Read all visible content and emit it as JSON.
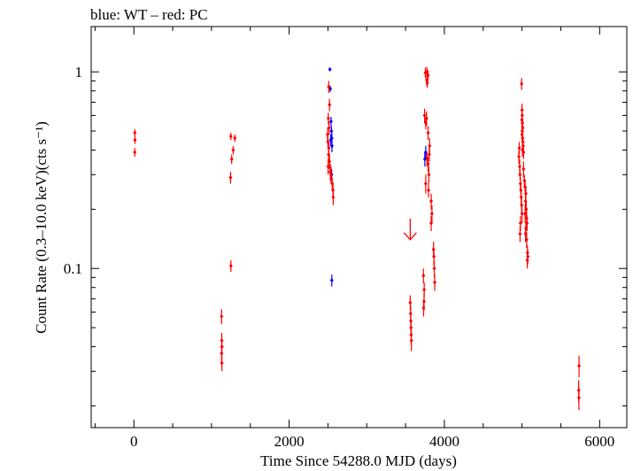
{
  "chart_data": {
    "type": "scatter",
    "title": "blue: WT – red: PC",
    "xlabel": "Time Since 54288.0 MJD (days)",
    "ylabel": "Count Rate (0.3–10.0 keV)(cts s⁻¹)",
    "xlim": [
      -550,
      6350
    ],
    "ylim": [
      0.0155,
      1.7
    ],
    "yscale": "log",
    "grid": false,
    "x_ticks": [
      {
        "value": 0,
        "label": "0"
      },
      {
        "value": 2000,
        "label": "2000"
      },
      {
        "value": 4000,
        "label": "4000"
      },
      {
        "value": 6000,
        "label": "6000"
      }
    ],
    "y_ticks": [
      {
        "value": 1,
        "label": "1"
      },
      {
        "value": 0.1,
        "label": "0.1"
      }
    ],
    "colors": {
      "WT": "#0000ff",
      "PC": "#ff0000",
      "axis": "#000000"
    },
    "series": [
      {
        "mode": "WT",
        "color": "#0000ff",
        "points": [
          [
            2525,
            1.03,
            0.02
          ],
          [
            2530,
            0.82,
            0.03
          ],
          [
            2540,
            0.56,
            0.03
          ],
          [
            2545,
            0.5,
            0.03
          ],
          [
            2550,
            0.46,
            0.03
          ],
          [
            2535,
            0.45,
            0.03
          ],
          [
            2552,
            0.42,
            0.03
          ],
          [
            2548,
            0.3,
            0.02
          ],
          [
            2550,
            0.087,
            0.006
          ],
          [
            3760,
            0.39,
            0.03
          ],
          [
            3748,
            0.36,
            0.03
          ]
        ]
      },
      {
        "mode": "PC",
        "color": "#ff0000",
        "points": [
          [
            12,
            0.49,
            0.02
          ],
          [
            14,
            0.45,
            0.02
          ],
          [
            12,
            0.39,
            0.02
          ],
          [
            1250,
            0.47,
            0.02
          ],
          [
            1300,
            0.46,
            0.02
          ],
          [
            1280,
            0.4,
            0.02
          ],
          [
            1260,
            0.36,
            0.02
          ],
          [
            1245,
            0.29,
            0.02
          ],
          [
            1250,
            0.103,
            0.007
          ],
          [
            1130,
            0.057,
            0.005
          ],
          [
            1132,
            0.043,
            0.004
          ],
          [
            1135,
            0.04,
            0.004
          ],
          [
            1130,
            0.037,
            0.004
          ],
          [
            1134,
            0.033,
            0.003
          ],
          [
            2510,
            0.84,
            0.06
          ],
          [
            2520,
            0.68,
            0.05
          ],
          [
            2505,
            0.58,
            0.04
          ],
          [
            2515,
            0.52,
            0.04
          ],
          [
            2495,
            0.48,
            0.04
          ],
          [
            2500,
            0.44,
            0.03
          ],
          [
            2512,
            0.41,
            0.03
          ],
          [
            2508,
            0.38,
            0.03
          ],
          [
            2520,
            0.35,
            0.03
          ],
          [
            2502,
            0.33,
            0.03
          ],
          [
            2530,
            0.31,
            0.03
          ],
          [
            2540,
            0.3,
            0.03
          ],
          [
            2555,
            0.27,
            0.02
          ],
          [
            2565,
            0.25,
            0.02
          ],
          [
            2568,
            0.23,
            0.02
          ],
          [
            3560,
            0.067,
            0.006
          ],
          [
            3565,
            0.059,
            0.006
          ],
          [
            3568,
            0.054,
            0.006
          ],
          [
            3570,
            0.05,
            0.005
          ],
          [
            3572,
            0.046,
            0.005
          ],
          [
            3575,
            0.043,
            0.005
          ],
          [
            3755,
            0.99,
            0.06
          ],
          [
            3775,
            1.0,
            0.06
          ],
          [
            3790,
            0.96,
            0.06
          ],
          [
            3772,
            0.91,
            0.06
          ],
          [
            3780,
            0.88,
            0.05
          ],
          [
            3745,
            0.6,
            0.05
          ],
          [
            3770,
            0.58,
            0.05
          ],
          [
            3760,
            0.55,
            0.04
          ],
          [
            3790,
            0.49,
            0.04
          ],
          [
            3810,
            0.42,
            0.04
          ],
          [
            3805,
            0.38,
            0.03
          ],
          [
            3775,
            0.36,
            0.03
          ],
          [
            3790,
            0.34,
            0.03
          ],
          [
            3800,
            0.3,
            0.03
          ],
          [
            3760,
            0.27,
            0.03
          ],
          [
            3795,
            0.25,
            0.02
          ],
          [
            3830,
            0.22,
            0.02
          ],
          [
            3840,
            0.19,
            0.02
          ],
          [
            3830,
            0.17,
            0.015
          ],
          [
            3730,
            0.092,
            0.008
          ],
          [
            3740,
            0.078,
            0.007
          ],
          [
            3738,
            0.068,
            0.007
          ],
          [
            3732,
            0.063,
            0.006
          ],
          [
            3860,
            0.125,
            0.012
          ],
          [
            3865,
            0.115,
            0.012
          ],
          [
            3870,
            0.1,
            0.01
          ],
          [
            3875,
            0.085,
            0.008
          ],
          [
            4995,
            0.87,
            0.06
          ],
          [
            5000,
            0.64,
            0.05
          ],
          [
            5002,
            0.6,
            0.05
          ],
          [
            4998,
            0.57,
            0.05
          ],
          [
            5005,
            0.55,
            0.04
          ],
          [
            5010,
            0.52,
            0.04
          ],
          [
            5003,
            0.5,
            0.04
          ],
          [
            5000,
            0.48,
            0.04
          ],
          [
            5008,
            0.46,
            0.04
          ],
          [
            5012,
            0.44,
            0.03
          ],
          [
            5015,
            0.42,
            0.03
          ],
          [
            5005,
            0.4,
            0.03
          ],
          [
            5020,
            0.39,
            0.03
          ],
          [
            4965,
            0.41,
            0.03
          ],
          [
            4960,
            0.37,
            0.03
          ],
          [
            4970,
            0.33,
            0.03
          ],
          [
            4975,
            0.3,
            0.02
          ],
          [
            4980,
            0.27,
            0.02
          ],
          [
            4985,
            0.25,
            0.02
          ],
          [
            4990,
            0.23,
            0.02
          ],
          [
            4995,
            0.21,
            0.02
          ],
          [
            5000,
            0.19,
            0.02
          ],
          [
            4980,
            0.17,
            0.015
          ],
          [
            4975,
            0.15,
            0.014
          ],
          [
            5020,
            0.32,
            0.03
          ],
          [
            5030,
            0.28,
            0.02
          ],
          [
            5040,
            0.26,
            0.02
          ],
          [
            5050,
            0.24,
            0.02
          ],
          [
            5045,
            0.22,
            0.02
          ],
          [
            5055,
            0.2,
            0.02
          ],
          [
            5040,
            0.19,
            0.02
          ],
          [
            5060,
            0.18,
            0.015
          ],
          [
            5065,
            0.17,
            0.015
          ],
          [
            5050,
            0.16,
            0.014
          ],
          [
            5045,
            0.15,
            0.014
          ],
          [
            5060,
            0.14,
            0.013
          ],
          [
            5070,
            0.12,
            0.011
          ],
          [
            5075,
            0.115,
            0.01
          ],
          [
            5068,
            0.11,
            0.01
          ],
          [
            5735,
            0.032,
            0.004
          ],
          [
            5730,
            0.024,
            0.003
          ],
          [
            5733,
            0.022,
            0.003
          ]
        ]
      }
    ],
    "upper_limits": [
      {
        "x": 3560,
        "y": 0.14,
        "color": "#ff0000"
      }
    ]
  }
}
